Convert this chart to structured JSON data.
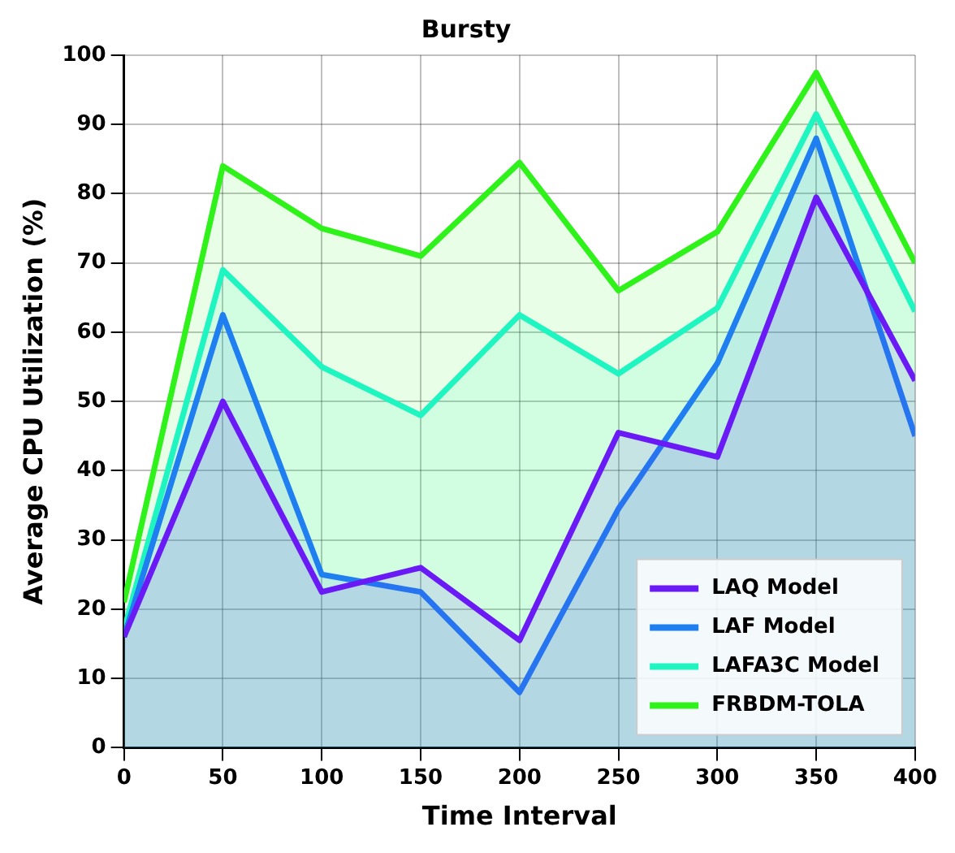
{
  "chart_data": {
    "type": "area",
    "title": "Bursty",
    "xlabel": "Time Interval",
    "ylabel": "Average CPU Utilization (%)",
    "x": [
      0,
      50,
      100,
      150,
      200,
      250,
      300,
      350,
      400
    ],
    "series": [
      {
        "name": "LAQ Model",
        "color": "#6a1bf5",
        "values": [
          16,
          50,
          22.5,
          26,
          15.5,
          45.5,
          42,
          79.5,
          53
        ]
      },
      {
        "name": "LAF Model",
        "color": "#1f7ff0",
        "values": [
          16,
          62.5,
          25,
          22.5,
          8,
          34.5,
          55.5,
          88,
          45
        ]
      },
      {
        "name": "LAFA3C Model",
        "color": "#1ef5c0",
        "values": [
          17,
          69,
          55,
          48,
          62.5,
          54,
          63.5,
          91.5,
          63
        ]
      },
      {
        "name": "FRBDM-TOLA",
        "color": "#2ef21a",
        "values": [
          21,
          84,
          75,
          71,
          84.5,
          66,
          74.5,
          97.5,
          70
        ]
      }
    ],
    "xlim": [
      0,
      400
    ],
    "xticks": [
      0,
      50,
      100,
      150,
      200,
      250,
      300,
      350,
      400
    ],
    "ylim": [
      0,
      100
    ],
    "yticks": [
      0,
      10,
      20,
      30,
      40,
      50,
      60,
      70,
      80,
      90,
      100
    ],
    "grid": true,
    "legend": "bottom right"
  }
}
